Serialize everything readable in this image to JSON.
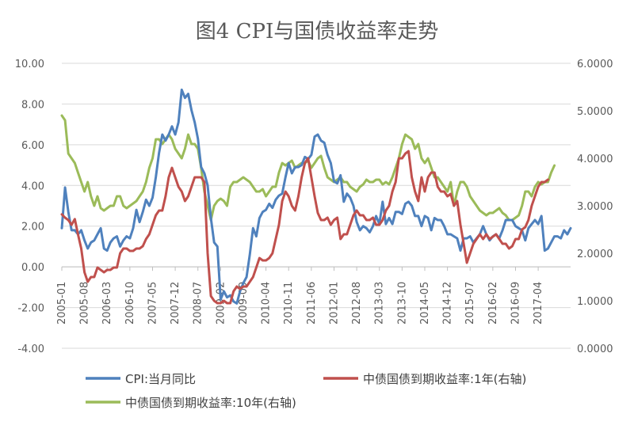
{
  "chart_data": {
    "type": "line",
    "title": "图4 CPI与国债收益率走势",
    "xlabel": "",
    "ylabel": "",
    "ylim": [
      -4,
      10
    ],
    "y_ticks": [
      "-4.00",
      "-2.00",
      "0.00",
      "2.00",
      "4.00",
      "6.00",
      "8.00",
      "10.00"
    ],
    "y2lim": [
      0,
      6
    ],
    "y2_ticks": [
      "0.0000",
      "1.0000",
      "2.0000",
      "3.0000",
      "4.0000",
      "5.0000",
      "6.0000"
    ],
    "x_tick_labels": [
      "2005-01",
      "2005-08",
      "2006-03",
      "2006-10",
      "2007-05",
      "2007-12",
      "2008-07",
      "2009-02",
      "2009-09",
      "2010-04",
      "2010-11",
      "2011-06",
      "2012-01",
      "2012-08",
      "2013-03",
      "2013-10",
      "2014-05",
      "2014-12",
      "2015-07",
      "2016-02",
      "2016-09",
      "2017-04"
    ],
    "grid": true,
    "legend_position": "bottom",
    "series": [
      {
        "name": "CPI:当月同比",
        "axis": "left",
        "color": "#4F81BD",
        "values": [
          1.9,
          3.9,
          2.7,
          1.8,
          1.8,
          1.6,
          1.8,
          1.3,
          0.9,
          1.2,
          1.3,
          1.6,
          1.9,
          0.9,
          0.8,
          1.2,
          1.4,
          1.5,
          1.0,
          1.3,
          1.5,
          1.4,
          1.9,
          2.8,
          2.2,
          2.7,
          3.3,
          3.0,
          3.4,
          4.4,
          5.6,
          6.5,
          6.2,
          6.5,
          6.9,
          6.5,
          7.1,
          8.7,
          8.3,
          8.5,
          7.7,
          7.1,
          6.3,
          4.9,
          4.6,
          4.0,
          2.4,
          1.2,
          1.0,
          -1.6,
          -1.2,
          -1.5,
          -1.4,
          -1.7,
          -1.8,
          -1.2,
          -0.8,
          -0.5,
          0.6,
          1.9,
          1.5,
          2.4,
          2.7,
          2.8,
          3.1,
          2.9,
          3.3,
          3.5,
          3.6,
          4.4,
          5.1,
          4.6,
          4.9,
          4.9,
          5.0,
          5.4,
          5.3,
          5.5,
          6.4,
          6.5,
          6.2,
          6.1,
          5.5,
          5.1,
          4.2,
          4.1,
          4.5,
          3.2,
          3.6,
          3.4,
          3.0,
          2.2,
          1.8,
          2.0,
          1.9,
          1.7,
          2.0,
          2.5,
          2.1,
          3.2,
          2.1,
          2.4,
          2.1,
          2.7,
          2.7,
          2.6,
          3.1,
          3.2,
          3.0,
          2.5,
          2.5,
          2.0,
          2.5,
          2.4,
          1.8,
          2.4,
          2.3,
          2.3,
          2.0,
          1.6,
          1.6,
          1.5,
          1.4,
          0.8,
          1.4,
          1.4,
          1.5,
          1.2,
          1.4,
          1.6,
          2.0,
          1.6,
          1.3,
          1.5,
          1.6,
          1.4,
          1.8,
          2.3,
          2.3,
          2.3,
          2.0,
          1.9,
          1.8,
          1.3,
          1.9,
          2.1,
          2.3,
          2.1,
          2.5,
          0.8,
          0.9,
          1.2,
          1.5,
          1.5,
          1.4,
          1.8,
          1.6,
          1.9
        ]
      },
      {
        "name": "中债国债到期收益率:1年(右轴)",
        "axis": "right",
        "color": "#C0504D",
        "values": [
          2.82,
          2.75,
          2.7,
          2.6,
          2.72,
          2.4,
          2.1,
          1.6,
          1.4,
          1.5,
          1.5,
          1.7,
          1.65,
          1.6,
          1.65,
          1.65,
          1.7,
          1.7,
          2.0,
          2.1,
          2.1,
          2.05,
          2.05,
          2.1,
          2.1,
          2.15,
          2.3,
          2.4,
          2.6,
          2.8,
          2.9,
          2.9,
          3.2,
          3.6,
          3.8,
          3.6,
          3.4,
          3.3,
          3.1,
          3.2,
          3.4,
          3.6,
          3.6,
          3.6,
          3.5,
          2.0,
          1.1,
          1.0,
          0.95,
          0.95,
          1.0,
          0.95,
          0.95,
          1.2,
          1.3,
          1.25,
          1.3,
          1.3,
          1.4,
          1.5,
          1.7,
          1.9,
          1.85,
          1.85,
          1.9,
          2.0,
          2.3,
          2.6,
          3.1,
          3.3,
          3.2,
          3.0,
          2.9,
          3.2,
          3.6,
          3.9,
          4.0,
          3.6,
          3.2,
          2.85,
          2.7,
          2.7,
          2.75,
          2.6,
          2.7,
          2.75,
          2.3,
          2.4,
          2.4,
          2.6,
          2.8,
          2.9,
          2.8,
          2.8,
          2.7,
          2.7,
          2.75,
          2.6,
          2.6,
          2.7,
          2.9,
          3.0,
          3.3,
          3.5,
          4.0,
          4.0,
          4.1,
          4.15,
          3.6,
          3.3,
          3.1,
          3.6,
          3.3,
          3.6,
          3.7,
          3.7,
          3.4,
          3.3,
          3.3,
          3.2,
          3.25,
          3.0,
          3.1,
          2.6,
          2.2,
          1.8,
          2.0,
          2.2,
          2.3,
          2.4,
          2.3,
          2.4,
          2.3,
          2.35,
          2.4,
          2.3,
          2.2,
          2.2,
          2.1,
          2.15,
          2.3,
          2.3,
          2.5,
          2.55,
          2.7,
          3.0,
          3.2,
          3.4,
          3.5,
          3.5,
          3.55
        ]
      },
      {
        "name": "中债国债到期收益率:10年(右轴)",
        "axis": "right",
        "color": "#9BBB59",
        "values": [
          4.9,
          4.8,
          4.1,
          4.0,
          3.9,
          3.7,
          3.5,
          3.3,
          3.5,
          3.2,
          3.0,
          3.2,
          2.95,
          2.9,
          2.95,
          3.0,
          3.0,
          3.2,
          3.2,
          3.0,
          2.95,
          3.0,
          3.05,
          3.1,
          3.2,
          3.3,
          3.5,
          3.8,
          4.0,
          4.4,
          4.4,
          4.3,
          4.4,
          4.5,
          4.4,
          4.2,
          4.1,
          4.0,
          4.2,
          4.5,
          4.3,
          4.3,
          4.2,
          3.8,
          3.3,
          3.0,
          2.7,
          3.0,
          3.1,
          3.15,
          3.1,
          3.0,
          3.4,
          3.5,
          3.5,
          3.55,
          3.6,
          3.55,
          3.5,
          3.4,
          3.3,
          3.3,
          3.35,
          3.2,
          3.3,
          3.4,
          3.4,
          3.7,
          3.9,
          3.85,
          3.9,
          3.95,
          3.8,
          3.85,
          3.9,
          3.9,
          3.95,
          3.8,
          3.9,
          4.0,
          4.05,
          3.8,
          3.6,
          3.55,
          3.5,
          3.55,
          3.6,
          3.5,
          3.5,
          3.4,
          3.35,
          3.3,
          3.4,
          3.45,
          3.55,
          3.5,
          3.5,
          3.55,
          3.55,
          3.45,
          3.5,
          3.45,
          3.6,
          3.8,
          4.0,
          4.3,
          4.5,
          4.45,
          4.4,
          4.2,
          4.3,
          4.0,
          3.9,
          4.0,
          3.8,
          3.6,
          3.6,
          3.5,
          3.4,
          3.3,
          3.5,
          3.0,
          3.3,
          3.5,
          3.5,
          3.4,
          3.2,
          3.1,
          3.0,
          2.9,
          2.85,
          2.8,
          2.85,
          2.85,
          2.9,
          2.95,
          2.85,
          2.8,
          2.7,
          2.7,
          2.75,
          2.8,
          3.0,
          3.3,
          3.3,
          3.2,
          3.4,
          3.5,
          3.45,
          3.5,
          3.5,
          3.7,
          3.85
        ]
      }
    ]
  }
}
